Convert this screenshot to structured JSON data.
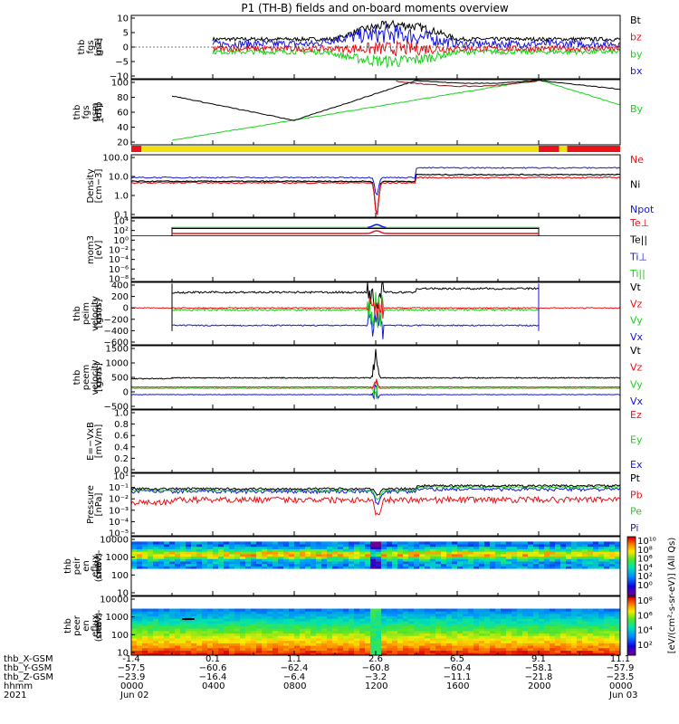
{
  "title": "P1 (TH-B) fields and on-board moments overview",
  "colors": {
    "black": "#000000",
    "red": "#e8141a",
    "green": "#19d219",
    "blue": "#1515e0"
  },
  "chart_data": [
    {
      "id": "p1",
      "type": "line",
      "ylabel": [
        "thb",
        "fgs",
        "gse",
        "[nT]"
      ],
      "yticks": [
        "10",
        "5",
        "0",
        "−5",
        "−10"
      ],
      "ylim": [
        -10,
        10
      ],
      "legend": [
        {
          "label": "Bt",
          "color": "#000000"
        },
        {
          "label": "bz",
          "color": "#e8141a"
        },
        {
          "label": "by",
          "color": "#19d219"
        },
        {
          "label": "bx",
          "color": "#1515e0"
        }
      ]
    },
    {
      "id": "p2",
      "type": "line",
      "ylabel": [
        "thb",
        "fgs",
        "gsm",
        "_dsp",
        "[nT]"
      ],
      "yticks": [
        "100",
        "80",
        "60",
        "40",
        "20"
      ],
      "ylim": [
        12,
        100
      ],
      "legend": [
        {
          "label": "By",
          "color": "#19d219"
        }
      ]
    },
    {
      "id": "p3",
      "type": "line",
      "ylabel": [
        "Density",
        "[cm−3]"
      ],
      "yticks": [
        "100.0",
        "10.0",
        "1.0",
        "0.1"
      ],
      "scale": "log",
      "legend": [
        {
          "label": "Ne",
          "color": "#e8141a"
        },
        {
          "label": "Ni",
          "color": "#000000"
        },
        {
          "label": "Npot",
          "color": "#1515e0"
        }
      ]
    },
    {
      "id": "p4",
      "type": "line",
      "ylabel": [
        "mom3",
        "[eV]"
      ],
      "yticks": [
        "10⁴",
        "10²",
        "10⁰",
        "10⁻²",
        "10⁻⁴",
        "10⁻⁶",
        "10⁻⁸"
      ],
      "scale": "log",
      "legend": [
        {
          "label": "Te⊥",
          "color": "#e8141a"
        },
        {
          "label": "Te||",
          "color": "#000000"
        },
        {
          "label": "Ti⊥",
          "color": "#1515e0"
        },
        {
          "label": "Ti||",
          "color": "#19d219"
        }
      ]
    },
    {
      "id": "p5",
      "type": "line",
      "ylabel": [
        "thb",
        "peim",
        "velocity",
        "gsm",
        "[km/s]"
      ],
      "yticks": [
        "400",
        "200",
        "0",
        "−200",
        "−400",
        "−600"
      ],
      "ylim": [
        -600,
        400
      ],
      "legend": [
        {
          "label": "Vt",
          "color": "#000000"
        },
        {
          "label": "Vz",
          "color": "#e8141a"
        },
        {
          "label": "Vy",
          "color": "#19d219"
        },
        {
          "label": "Vx",
          "color": "#1515e0"
        }
      ]
    },
    {
      "id": "p6",
      "type": "line",
      "ylabel": [
        "thb",
        "peem",
        "velocity",
        "gsm",
        "[km/s]"
      ],
      "yticks": [
        "1500",
        "1000",
        "500",
        "0",
        "−500"
      ],
      "ylim": [
        -900,
        1600
      ],
      "legend": [
        {
          "label": "Vt",
          "color": "#000000"
        },
        {
          "label": "Vz",
          "color": "#e8141a"
        },
        {
          "label": "Vy",
          "color": "#19d219"
        },
        {
          "label": "Vx",
          "color": "#1515e0"
        }
      ]
    },
    {
      "id": "p7",
      "type": "line",
      "ylabel": [
        "E=−VxB",
        "[mV/m]"
      ],
      "yticks": [
        "1.0",
        "0.8",
        "0.6",
        "0.4",
        "0.2",
        "0.0"
      ],
      "ylim": [
        0,
        1
      ],
      "legend": [
        {
          "label": "Ez",
          "color": "#e8141a"
        },
        {
          "label": "Ey",
          "color": "#19d219"
        },
        {
          "label": "Ex",
          "color": "#1515e0"
        }
      ]
    },
    {
      "id": "p8",
      "type": "line",
      "ylabel": [
        "Pressure",
        "[nPa]"
      ],
      "yticks": [
        "10¹",
        "10⁻¹",
        "10⁻²",
        "10⁻³",
        "10⁻⁴",
        "10⁻⁵"
      ],
      "scale": "log",
      "legend": [
        {
          "label": "Pt",
          "color": "#000000"
        },
        {
          "label": "Pb",
          "color": "#e8141a"
        },
        {
          "label": "Pe",
          "color": "#19d219"
        },
        {
          "label": "Pi",
          "color": "#1515e0"
        }
      ]
    },
    {
      "id": "p9",
      "type": "heatmap",
      "ylabel": [
        "thb",
        "peir",
        "en",
        "eflux",
        "eV",
        "(cm²-s-",
        "sr-eV)"
      ],
      "yticks": [
        "10000",
        "1000",
        "100",
        "10"
      ],
      "scale": "log"
    },
    {
      "id": "p10",
      "type": "heatmap",
      "ylabel": [
        "thb",
        "peer",
        "en",
        "eflux",
        "eV",
        "(cm²-s-",
        "sr-eV)"
      ],
      "yticks": [
        "10000",
        "1000",
        "100",
        "10"
      ],
      "scale": "log"
    }
  ],
  "colorbar": {
    "label": "[eV/(cm²-s-sr-eV)] (All Qs)",
    "ticks_top": [
      "10¹⁰",
      "10⁸",
      "10⁶",
      "10⁴",
      "10²",
      "10⁰"
    ],
    "ticks_bottom": [
      "10⁸",
      "10⁶",
      "10⁴",
      "10²"
    ]
  },
  "xaxis": {
    "row_labels": [
      "thb_X-GSM",
      "thb_Y-GSM",
      "thb_Z-GSM",
      "hhmm",
      "2021"
    ],
    "ticks": [
      {
        "x": "-1.4",
        "y": "−57.5",
        "z": "−23.9",
        "t": "0000",
        "d": "Jun 02"
      },
      {
        "x": "0.1",
        "y": "−60.6",
        "z": "−16.4",
        "t": "0400",
        "d": ""
      },
      {
        "x": "1.1",
        "y": "−62.4",
        "z": "−6.4",
        "t": "0800",
        "d": ""
      },
      {
        "x": "2.6",
        "y": "−60.8",
        "z": "−3.2",
        "t": "1200",
        "d": ""
      },
      {
        "x": "6.5",
        "y": "−60.4",
        "z": "−11.1",
        "t": "1600",
        "d": ""
      },
      {
        "x": "9.1",
        "y": "−58.1",
        "z": "−21.8",
        "t": "2000",
        "d": ""
      },
      {
        "x": "11.1",
        "y": "−57.9",
        "z": "−23.5",
        "t": "0000",
        "d": "Jun 03"
      }
    ]
  }
}
